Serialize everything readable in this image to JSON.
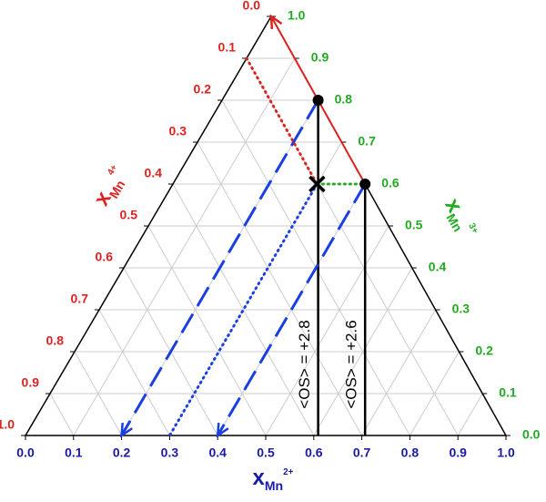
{
  "chart_data": {
    "type": "ternary",
    "axes": {
      "a": {
        "title": "x",
        "subscript": "Mn",
        "superscript": "2+",
        "color": "#1a1aa6",
        "ticks": [
          {
            "value": 0,
            "label": "0.0"
          },
          0.1,
          0.2,
          0.3,
          0.4,
          0.5,
          0.6,
          0.7,
          0.8,
          0.9,
          {
            "value": 1,
            "label": "1.0"
          }
        ]
      },
      "b": {
        "title": "x",
        "subscript": "Mn",
        "superscript": "3+",
        "color": "#22aa22",
        "ticks": [
          {
            "value": 0,
            "label": "0.0"
          },
          0.1,
          0.2,
          0.3,
          0.4,
          0.5,
          0.6,
          0.7,
          0.8,
          0.9,
          {
            "value": 1,
            "label": "1.0"
          }
        ]
      },
      "c": {
        "title": "x",
        "subscript": "Mn",
        "superscript": "4+",
        "color": "#dd2222",
        "ticks": [
          {
            "value": 0,
            "label": "0.0"
          },
          0.1,
          0.2,
          0.3,
          0.4,
          0.5,
          0.6,
          0.7,
          0.8,
          0.9,
          {
            "value": 1,
            "label": "1.0"
          }
        ]
      }
    },
    "grid": true,
    "points": [
      {
        "values": [
          0.2,
          0.8,
          0
        ],
        "marker": "circle"
      },
      {
        "values": [
          0.4,
          0.6,
          0
        ],
        "marker": "circle"
      },
      {
        "values": [
          0.3,
          0.6,
          0.1
        ],
        "marker": "cross"
      }
    ],
    "lines": [
      {
        "from": [
          0.2,
          0.8,
          0
        ],
        "to": [
          0.2,
          0,
          0.8
        ],
        "style": "dashed",
        "color": "#1a3fe0",
        "arrow": true
      },
      {
        "from": [
          0.4,
          0.6,
          0
        ],
        "to": [
          0.4,
          0,
          0.6
        ],
        "style": "dashed",
        "color": "#1a3fe0",
        "arrow": true
      },
      {
        "from": [
          0.3,
          0.6,
          0.1
        ],
        "to": [
          0.3,
          0,
          0.7
        ],
        "style": "dotted",
        "color": "#1a3fe0",
        "arrow": false
      },
      {
        "from": [
          0,
          0.9,
          0.1
        ],
        "to": [
          0.3,
          0.6,
          0.1
        ],
        "style": "dotted",
        "color": "#dd2222",
        "arrow": false
      },
      {
        "from": [
          0.3,
          0.6,
          0.1
        ],
        "to": [
          0.4,
          0.6,
          0
        ],
        "style": "dotted",
        "color": "#22aa22",
        "arrow": false
      },
      {
        "from": [
          0.4,
          0.6,
          0
        ],
        "to": [
          0,
          1,
          0
        ],
        "style": "solid",
        "color": "#dd2222",
        "arrow": true
      }
    ],
    "drop_lines": [
      {
        "from": [
          0.2,
          0.8,
          0
        ],
        "label": "<OS> = +2.8"
      },
      {
        "from": [
          0.4,
          0.6,
          0
        ],
        "label": "<OS> = +2.6"
      }
    ]
  }
}
